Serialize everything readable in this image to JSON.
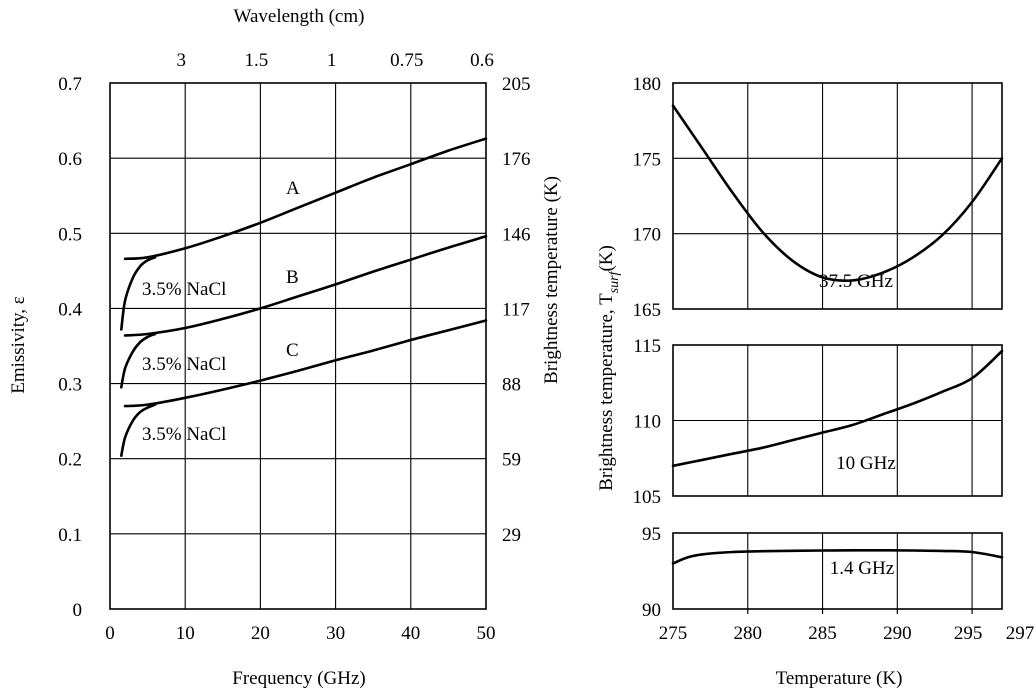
{
  "chart_data": [
    {
      "type": "line",
      "title": "",
      "xlabel": "Frequency (GHz)",
      "ylabel": "Emissivity, ε",
      "ylabel_right": "Brightness temperature (K)",
      "xlabel_top": "Wavelength (cm)",
      "xlim": [
        0,
        50
      ],
      "ylim": [
        0,
        0.7
      ],
      "x_ticks": [
        "0",
        "10",
        "20",
        "30",
        "40",
        "50"
      ],
      "y_ticks": [
        "0",
        "0.1",
        "0.2",
        "0.3",
        "0.4",
        "0.5",
        "0.6",
        "0.7"
      ],
      "y_right_ticks": [
        "29",
        "59",
        "88",
        "117",
        "146",
        "176",
        "205"
      ],
      "top_ticks": [
        {
          "label": "3",
          "freq": 10
        },
        {
          "label": "1.5",
          "freq": 20
        },
        {
          "label": "1",
          "freq": 30
        },
        {
          "label": "0.75",
          "freq": 40
        },
        {
          "label": "0.6",
          "freq": 50
        }
      ],
      "grid": true,
      "series": [
        {
          "name": "A",
          "x": [
            2,
            5,
            10,
            15,
            20,
            25,
            30,
            35,
            40,
            45,
            50
          ],
          "y": [
            0.466,
            0.468,
            0.48,
            0.496,
            0.514,
            0.534,
            0.554,
            0.574,
            0.592,
            0.61,
            0.626
          ]
        },
        {
          "name": "B",
          "x": [
            2,
            5,
            10,
            15,
            20,
            25,
            30,
            35,
            40,
            45,
            50
          ],
          "y": [
            0.364,
            0.366,
            0.374,
            0.386,
            0.4,
            0.416,
            0.432,
            0.449,
            0.465,
            0.481,
            0.496
          ]
        },
        {
          "name": "C",
          "x": [
            2,
            5,
            10,
            15,
            20,
            25,
            30,
            35,
            40,
            45,
            50
          ],
          "y": [
            0.27,
            0.272,
            0.281,
            0.292,
            0.304,
            0.317,
            0.331,
            0.344,
            0.358,
            0.371,
            0.384
          ]
        },
        {
          "name": "3.5% NaCl",
          "x": [
            1.5,
            2,
            3,
            4,
            5,
            6
          ],
          "y": [
            0.372,
            0.41,
            0.44,
            0.456,
            0.464,
            0.468
          ]
        },
        {
          "name": "3.5% NaCl",
          "x": [
            1.5,
            2,
            3,
            4,
            5,
            6
          ],
          "y": [
            0.295,
            0.32,
            0.342,
            0.355,
            0.362,
            0.366
          ]
        },
        {
          "name": "3.5% NaCl",
          "x": [
            1.5,
            2,
            3,
            4,
            5,
            6
          ],
          "y": [
            0.204,
            0.228,
            0.25,
            0.262,
            0.268,
            0.272
          ]
        }
      ],
      "annotations": [
        "A",
        "B",
        "C",
        "3.5% NaCl",
        "3.5% NaCl",
        "3.5% NaCl"
      ]
    },
    {
      "type": "line",
      "title": "",
      "xlabel": "Temperature (K)",
      "ylabel": "Brightness temperature, T",
      "ylabel_sub": "surf",
      "ylabel_suffix": "(K)",
      "x_ticks": [
        "275",
        "280",
        "285",
        "290",
        "295",
        "297"
      ],
      "xlim": [
        275,
        297
      ],
      "grid": true,
      "panels": [
        {
          "name": "37.5 GHz",
          "ylim": [
            165,
            180
          ],
          "y_ticks": [
            "165",
            "170",
            "175",
            "180"
          ],
          "x": [
            275,
            277,
            279,
            281,
            283,
            285,
            287,
            289,
            291,
            293,
            295,
            297
          ],
          "y": [
            178.5,
            175.6,
            172.7,
            170.1,
            168.2,
            167.1,
            166.9,
            167.4,
            168.4,
            169.9,
            172.1,
            175.0
          ]
        },
        {
          "name": "10 GHz",
          "ylim": [
            105,
            115
          ],
          "y_ticks": [
            "105",
            "110",
            "115"
          ],
          "x": [
            275,
            277,
            279,
            281,
            283,
            285,
            287,
            289,
            291,
            293,
            295,
            297
          ],
          "y": [
            107.0,
            107.4,
            107.8,
            108.2,
            108.7,
            109.2,
            109.7,
            110.4,
            111.1,
            111.9,
            112.8,
            114.6
          ]
        },
        {
          "name": "1.4 GHz",
          "ylim": [
            90,
            95
          ],
          "y_ticks": [
            "90",
            "95"
          ],
          "x": [
            275,
            276,
            277,
            279,
            281,
            283,
            285,
            287,
            289,
            291,
            293,
            295,
            297
          ],
          "y": [
            93.0,
            93.4,
            93.6,
            93.75,
            93.8,
            93.83,
            93.85,
            93.86,
            93.86,
            93.85,
            93.82,
            93.75,
            93.4
          ]
        }
      ]
    }
  ]
}
